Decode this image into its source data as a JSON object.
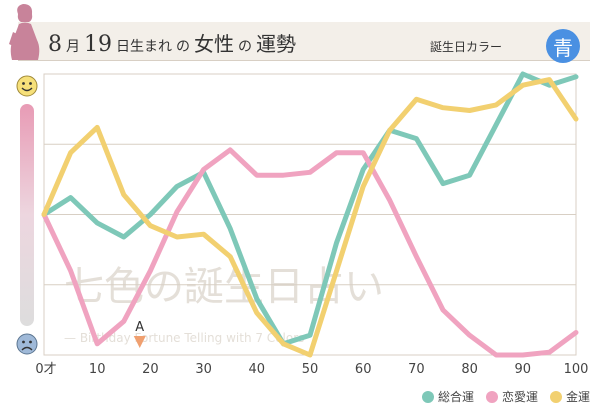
{
  "header": {
    "month": "8",
    "month_unit": "月",
    "day": "19",
    "day_suffix": "日生まれ",
    "no1": "の",
    "gender": "女性",
    "no2": "の",
    "fortune": "運勢",
    "birth_color_label": "誕生日カラー",
    "birth_color_char": "青",
    "birth_color": "#4a90e2"
  },
  "watermark": {
    "line1": "七色の誕生日占い",
    "line2": "— Birthday Fortune Telling with 7 Colors"
  },
  "marker": {
    "label": "A",
    "age": 18
  },
  "icons": {
    "top": "smiley-face-icon",
    "bottom": "worried-face-icon"
  },
  "chart_data": {
    "type": "line",
    "x": [
      0,
      5,
      10,
      15,
      20,
      25,
      30,
      35,
      40,
      45,
      50,
      55,
      60,
      65,
      70,
      75,
      80,
      85,
      90,
      95,
      100
    ],
    "xlim": [
      0,
      100
    ],
    "ylim": [
      0,
      100
    ],
    "x_ticks": [
      0,
      10,
      20,
      30,
      40,
      50,
      60,
      70,
      80,
      90,
      100
    ],
    "x_tick_labels": [
      "0才",
      "10",
      "20",
      "30",
      "40",
      "50",
      "60",
      "70",
      "80",
      "90",
      "100"
    ],
    "series": [
      {
        "name": "総合運",
        "color": "#7ec8b8",
        "values": [
          50,
          56,
          47,
          42,
          50,
          60,
          65,
          45,
          20,
          4,
          7,
          40,
          66,
          80,
          77,
          61,
          64,
          82,
          100,
          96,
          99
        ]
      },
      {
        "name": "恋愛運",
        "color": "#f0a3c0",
        "values": [
          50,
          30,
          4,
          12,
          30,
          51,
          66,
          73,
          64,
          64,
          65,
          72,
          72,
          55,
          35,
          16,
          7,
          0,
          0,
          1,
          8
        ]
      },
      {
        "name": "金運",
        "color": "#f2d070",
        "values": [
          50,
          72,
          81,
          57,
          46,
          42,
          43,
          35,
          15,
          4,
          0,
          30,
          60,
          80,
          91,
          88,
          87,
          89,
          96,
          98,
          84
        ]
      }
    ],
    "grid": true,
    "legend": "bottom-right"
  }
}
